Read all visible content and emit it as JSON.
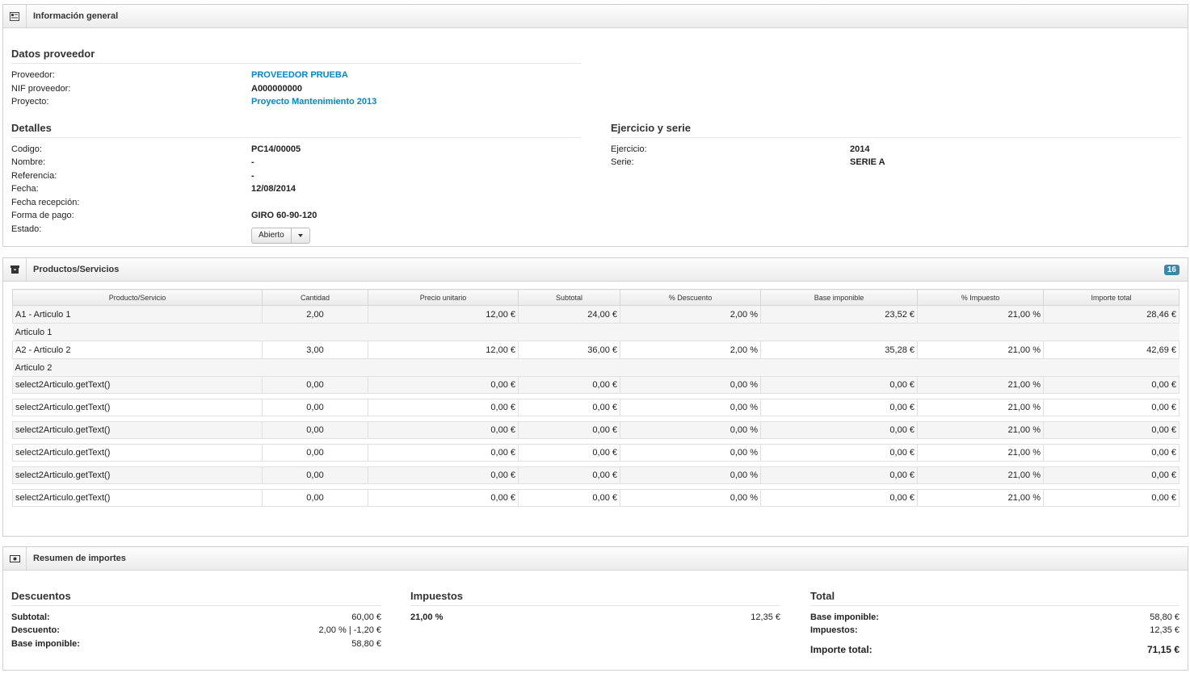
{
  "info": {
    "title": "Información general",
    "datos_proveedor": {
      "heading": "Datos proveedor",
      "rows": [
        {
          "label": "Proveedor:",
          "value": "PROVEEDOR PRUEBA"
        },
        {
          "label": "NIF proveedor:",
          "value": "A000000000"
        },
        {
          "label": "Proyecto:",
          "value": "Proyecto Mantenimiento 2013"
        }
      ]
    },
    "detalles": {
      "heading": "Detalles",
      "rows": [
        {
          "label": "Codigo:",
          "value": "PC14/00005"
        },
        {
          "label": "Nombre:",
          "value": "-"
        },
        {
          "label": "Referencia:",
          "value": "-"
        },
        {
          "label": "Fecha:",
          "value": "12/08/2014"
        },
        {
          "label": "Fecha recepción:",
          "value": ""
        },
        {
          "label": "Forma de pago:",
          "value": "GIRO 60-90-120"
        },
        {
          "label": "Estado:",
          "value": "Abierto"
        }
      ]
    },
    "ejercicio": {
      "heading": "Ejercicio y serie",
      "rows": [
        {
          "label": "Ejercicio:",
          "value": "2014"
        },
        {
          "label": "Serie:",
          "value": "SERIE A"
        }
      ]
    }
  },
  "productos": {
    "title": "Productos/Servicios",
    "badge": "16",
    "columns": [
      "Producto/Servicio",
      "Cantidad",
      "Precio unitario",
      "Subtotal",
      "% Descuento",
      "Base imponible",
      "% Impuesto",
      "Importe total"
    ],
    "rows": [
      {
        "name": "A1 - Articulo 1",
        "cantidad": "2,00",
        "precio": "12,00 €",
        "subtotal": "24,00 €",
        "descuento": "2,00 %",
        "base": "23,52 €",
        "impuesto": "21,00 %",
        "total": "28,46 €",
        "desc": "Articulo 1"
      },
      {
        "name": "A2 - Articulo 2",
        "cantidad": "3,00",
        "precio": "12,00 €",
        "subtotal": "36,00 €",
        "descuento": "2,00 %",
        "base": "35,28 €",
        "impuesto": "21,00 %",
        "total": "42,69 €",
        "desc": "Articulo 2"
      }
    ],
    "empty_rows": [
      {
        "name": "select2Articulo.getText()",
        "cantidad": "0,00",
        "precio": "0,00 €",
        "subtotal": "0,00 €",
        "descuento": "0,00 %",
        "base": "0,00 €",
        "impuesto": "21,00 %",
        "total": "0,00 €"
      },
      {
        "name": "select2Articulo.getText()",
        "cantidad": "0,00",
        "precio": "0,00 €",
        "subtotal": "0,00 €",
        "descuento": "0,00 %",
        "base": "0,00 €",
        "impuesto": "21,00 %",
        "total": "0,00 €"
      },
      {
        "name": "select2Articulo.getText()",
        "cantidad": "0,00",
        "precio": "0,00 €",
        "subtotal": "0,00 €",
        "descuento": "0,00 %",
        "base": "0,00 €",
        "impuesto": "21,00 %",
        "total": "0,00 €"
      },
      {
        "name": "select2Articulo.getText()",
        "cantidad": "0,00",
        "precio": "0,00 €",
        "subtotal": "0,00 €",
        "descuento": "0,00 %",
        "base": "0,00 €",
        "impuesto": "21,00 %",
        "total": "0,00 €"
      },
      {
        "name": "select2Articulo.getText()",
        "cantidad": "0,00",
        "precio": "0,00 €",
        "subtotal": "0,00 €",
        "descuento": "0,00 %",
        "base": "0,00 €",
        "impuesto": "21,00 %",
        "total": "0,00 €"
      },
      {
        "name": "select2Articulo.getText()",
        "cantidad": "0,00",
        "precio": "0,00 €",
        "subtotal": "0,00 €",
        "descuento": "0,00 %",
        "base": "0,00 €",
        "impuesto": "21,00 %",
        "total": "0,00 €"
      }
    ]
  },
  "resumen": {
    "title": "Resumen de importes",
    "descuentos": {
      "heading": "Descuentos",
      "rows": [
        {
          "label": "Subtotal:",
          "value": "60,00 €"
        },
        {
          "label": "Descuento:",
          "value": "2,00 % | -1,20 €"
        },
        {
          "label": "Base imponible:",
          "value": "58,80 €"
        }
      ]
    },
    "impuestos": {
      "heading": "Impuestos",
      "rows": [
        {
          "label": "21,00 %",
          "value": "12,35 €"
        }
      ]
    },
    "total": {
      "heading": "Total",
      "rows": [
        {
          "label": "Base imponible:",
          "value": "58,80 €"
        },
        {
          "label": "Impuestos:",
          "value": "12,35 €"
        }
      ],
      "grand_label": "Importe total:",
      "grand_value": "71,15 €"
    }
  }
}
